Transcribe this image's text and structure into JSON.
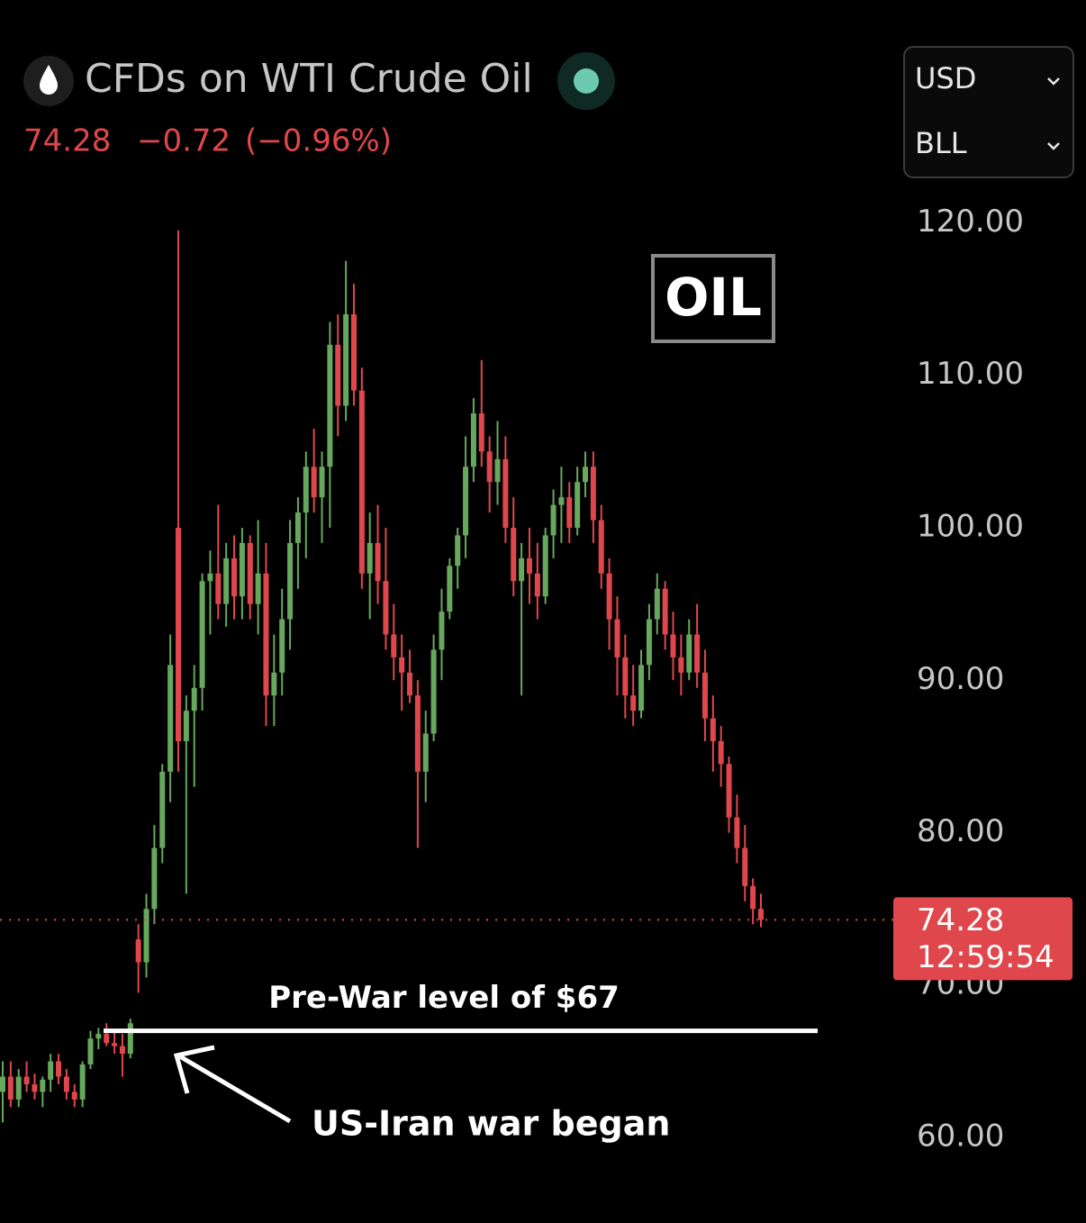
{
  "chart_data": {
    "type": "candlestick",
    "title": "CFDs on WTI Crude Oil",
    "change": "−0.72",
    "change_percent": "(−0.96%)",
    "currency": "USD",
    "unit": "BLL",
    "annotation": "OIL",
    "arrow_label": "US-Iran war began",
    "countdown": "12:59:54",
    "reference_line": {
      "value": 67,
      "label": "Pre-War level of $67"
    },
    "up_color": "#66a85c",
    "down_color": "#e0474c",
    "ylim": [
      54.4,
      122.8
    ],
    "yticks": [
      {
        "value": 60,
        "label": "60.00"
      },
      {
        "value": 70,
        "label": "70.00"
      },
      {
        "value": 80,
        "label": "80.00"
      },
      {
        "value": 90,
        "label": "90.00"
      },
      {
        "value": 100,
        "label": "100.00"
      },
      {
        "value": 110,
        "label": "110.00"
      },
      {
        "value": 120,
        "label": "120.00"
      }
    ],
    "open": [
      63,
      64,
      62.5,
      64,
      63.5,
      63,
      63.8,
      65,
      64,
      63,
      62.5,
      64.8,
      66.5,
      66.8,
      66.2,
      66,
      65.5,
      73,
      71.5,
      75,
      79,
      84,
      100,
      86,
      88,
      89.5,
      96.5,
      97,
      95,
      98,
      95.5,
      99,
      95,
      97,
      89,
      90.5,
      94,
      99,
      101,
      104,
      102,
      104,
      112,
      108,
      114,
      109,
      97,
      99,
      96.5,
      93,
      91.5,
      90.5,
      89,
      84,
      86.5,
      92,
      94.5,
      97.5,
      99.5,
      104,
      107.5,
      105,
      103,
      104.5,
      100,
      96.5,
      98,
      97,
      95.5,
      99.5,
      101.5,
      102,
      100,
      103,
      104,
      100.5,
      97,
      94,
      91.5,
      89,
      88,
      91,
      94,
      96,
      93,
      91.5,
      90.5,
      93,
      90.5,
      87.5,
      86,
      84.5,
      81,
      79,
      76.5,
      75
    ],
    "high": [
      65,
      65,
      64.5,
      65,
      64.2,
      64,
      65.5,
      65.5,
      64.5,
      63.5,
      65,
      67,
      67.2,
      67.5,
      67,
      66.8,
      67.8,
      74,
      76,
      80.5,
      84.5,
      93,
      119.5,
      89,
      91,
      97,
      98.5,
      101.5,
      99,
      99.5,
      100,
      99.5,
      100.5,
      99,
      93,
      96,
      100.5,
      102,
      105,
      106.5,
      105,
      113.5,
      114,
      117.5,
      116,
      110.5,
      101,
      101.5,
      100,
      95,
      93,
      92,
      90,
      88,
      93,
      96,
      98,
      100,
      106,
      108.5,
      111,
      106,
      107,
      106,
      102,
      99,
      100,
      99,
      100,
      102.5,
      104,
      103,
      104,
      105,
      105,
      101.5,
      98,
      95.5,
      93,
      91,
      92,
      95,
      97,
      96.5,
      94.5,
      93,
      94,
      95,
      92,
      89,
      87,
      85,
      82.5,
      80.5,
      77,
      76
    ],
    "low": [
      61,
      62,
      62,
      63,
      62.5,
      62,
      63,
      63.5,
      62.5,
      62,
      62,
      64.5,
      65.8,
      66,
      65.5,
      64,
      65.2,
      69.5,
      70.5,
      74,
      78,
      82,
      84,
      76,
      83,
      88,
      93,
      94,
      93.5,
      94,
      94,
      94,
      93,
      87,
      87,
      89,
      92,
      96,
      98,
      101,
      99,
      100,
      106,
      107,
      108,
      96,
      94,
      95,
      92,
      90,
      88,
      88.5,
      79,
      82,
      86,
      90,
      94,
      96,
      98,
      103,
      104,
      101,
      101.5,
      99,
      95.5,
      89,
      95,
      94,
      95,
      98,
      99,
      99,
      99.5,
      102,
      99,
      96,
      92,
      89,
      87.5,
      87,
      87.5,
      90,
      93,
      92,
      90,
      89,
      90,
      89.5,
      86,
      84,
      83,
      80,
      78,
      75.5,
      74,
      73.8
    ],
    "close": [
      64,
      62.5,
      64,
      63.5,
      63,
      63.8,
      65,
      64,
      63,
      62.5,
      64.8,
      66.5,
      66.8,
      66.2,
      66,
      65.5,
      67.5,
      71.5,
      75,
      79,
      84,
      91,
      86,
      88,
      89.5,
      96.5,
      97,
      95,
      98,
      95.5,
      99,
      95,
      97,
      89,
      90.5,
      94,
      99,
      101,
      104,
      102,
      104,
      112,
      108,
      114,
      109,
      97,
      99,
      96.5,
      93,
      91.5,
      90.5,
      89,
      84,
      86.5,
      92,
      94.5,
      97.5,
      99.5,
      104,
      107.5,
      105,
      103,
      104.5,
      100,
      96.5,
      98,
      97,
      95.5,
      99.5,
      101.5,
      102,
      100,
      103,
      104,
      100.5,
      97,
      94,
      91.5,
      89,
      88,
      91,
      94,
      96,
      93,
      91.5,
      90.5,
      93,
      90.5,
      87.5,
      86,
      84.5,
      81,
      79,
      76.5,
      75,
      74.28
    ]
  }
}
